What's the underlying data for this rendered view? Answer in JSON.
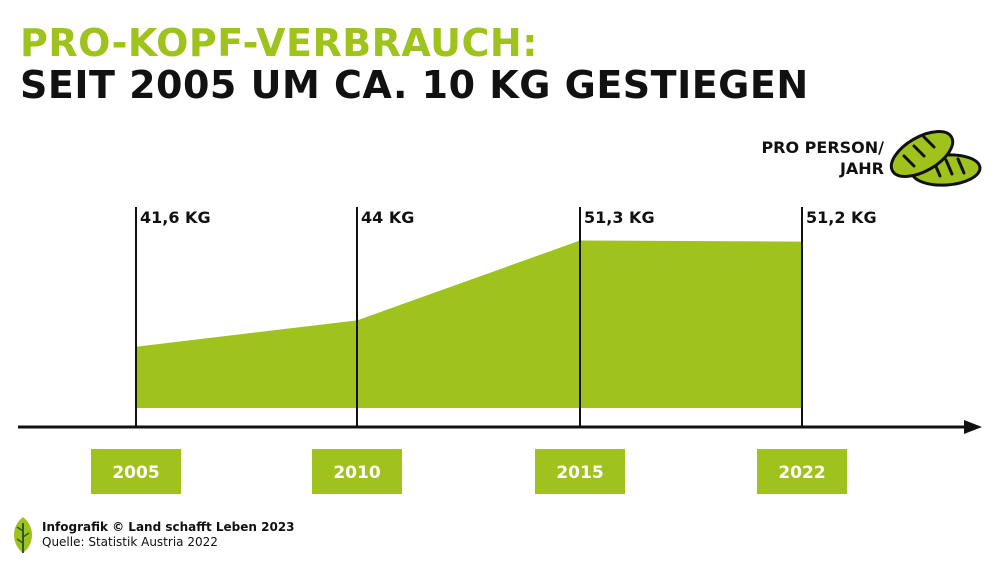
{
  "header": {
    "title_line1": "PRO-KOPF-VERBRAUCH:",
    "title_line2": "SEIT 2005 UM CA. 10 KG GESTIEGEN"
  },
  "unit": {
    "line1": "PRO PERSON/",
    "line2": "JAHR"
  },
  "chart_data": {
    "type": "area",
    "categories": [
      "2005",
      "2010",
      "2015",
      "2022"
    ],
    "values": [
      41.6,
      44,
      51.3,
      51.2
    ],
    "data_labels": [
      "41,6 KG",
      "44 KG",
      "51,3 KG",
      "51,2 KG"
    ],
    "ylim": [
      36,
      55
    ],
    "grid": false,
    "legend": "none"
  },
  "colors": {
    "accent": "#a0c21d",
    "text": "#111111",
    "background": "#ffffff"
  },
  "icons": {
    "unit_icon": "bread-icon",
    "logo": "leaf-logo-icon"
  },
  "footer": {
    "line1": "Infografik © Land schafft Leben 2023",
    "line2": "Quelle: Statistik Austria 2022"
  }
}
